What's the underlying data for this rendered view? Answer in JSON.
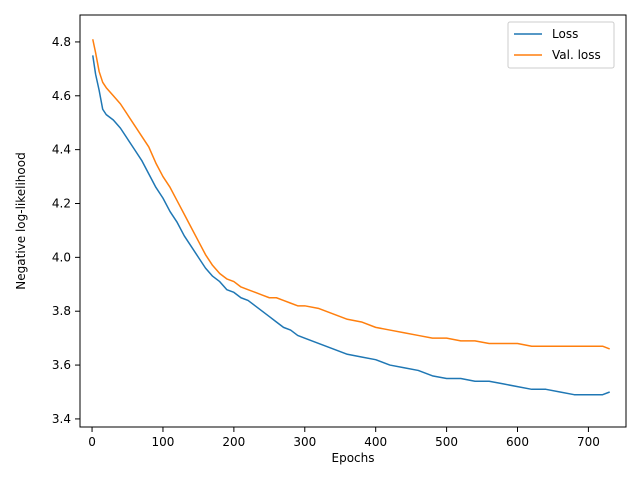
{
  "chart_data": {
    "type": "line",
    "title": "",
    "xlabel": "Epochs",
    "ylabel": "Negative log-likelihood",
    "xlim": [
      -17,
      753
    ],
    "ylim": [
      3.37,
      4.9
    ],
    "xticks": [
      0,
      100,
      200,
      300,
      400,
      500,
      600,
      700
    ],
    "xtick_labels": [
      "0",
      "100",
      "200",
      "300",
      "400",
      "500",
      "600",
      "700"
    ],
    "yticks": [
      3.4,
      3.6,
      3.8,
      4.0,
      4.2,
      4.4,
      4.6,
      4.8
    ],
    "ytick_labels": [
      "3.4",
      "3.6",
      "3.8",
      "4.0",
      "4.2",
      "4.4",
      "4.6",
      "4.8"
    ],
    "grid": false,
    "legend_position": "top-right",
    "series": [
      {
        "name": "Loss",
        "color": "#1f77b4",
        "x": [
          1,
          5,
          10,
          15,
          20,
          30,
          40,
          50,
          60,
          70,
          80,
          90,
          100,
          110,
          120,
          130,
          140,
          150,
          160,
          170,
          180,
          190,
          200,
          210,
          220,
          230,
          240,
          250,
          260,
          270,
          280,
          290,
          300,
          320,
          340,
          360,
          380,
          400,
          420,
          440,
          460,
          480,
          500,
          520,
          540,
          560,
          580,
          600,
          620,
          640,
          660,
          680,
          700,
          720,
          730
        ],
        "y": [
          4.75,
          4.68,
          4.62,
          4.55,
          4.53,
          4.51,
          4.48,
          4.44,
          4.4,
          4.36,
          4.31,
          4.26,
          4.22,
          4.17,
          4.13,
          4.08,
          4.04,
          4.0,
          3.96,
          3.93,
          3.91,
          3.88,
          3.87,
          3.85,
          3.84,
          3.82,
          3.8,
          3.78,
          3.76,
          3.74,
          3.73,
          3.71,
          3.7,
          3.68,
          3.66,
          3.64,
          3.63,
          3.62,
          3.6,
          3.59,
          3.58,
          3.56,
          3.55,
          3.55,
          3.54,
          3.54,
          3.53,
          3.52,
          3.51,
          3.51,
          3.5,
          3.49,
          3.49,
          3.49,
          3.5
        ]
      },
      {
        "name": "Val. loss",
        "color": "#ff7f0e",
        "x": [
          1,
          5,
          10,
          15,
          20,
          30,
          40,
          50,
          60,
          70,
          80,
          90,
          100,
          110,
          120,
          130,
          140,
          150,
          160,
          170,
          180,
          190,
          200,
          210,
          220,
          230,
          240,
          250,
          260,
          270,
          280,
          290,
          300,
          320,
          340,
          360,
          380,
          400,
          420,
          440,
          460,
          480,
          500,
          520,
          540,
          560,
          580,
          600,
          620,
          640,
          660,
          680,
          700,
          720,
          730
        ],
        "y": [
          4.81,
          4.76,
          4.69,
          4.65,
          4.63,
          4.6,
          4.57,
          4.53,
          4.49,
          4.45,
          4.41,
          4.35,
          4.3,
          4.26,
          4.21,
          4.16,
          4.11,
          4.06,
          4.01,
          3.97,
          3.94,
          3.92,
          3.91,
          3.89,
          3.88,
          3.87,
          3.86,
          3.85,
          3.85,
          3.84,
          3.83,
          3.82,
          3.82,
          3.81,
          3.79,
          3.77,
          3.76,
          3.74,
          3.73,
          3.72,
          3.71,
          3.7,
          3.7,
          3.69,
          3.69,
          3.68,
          3.68,
          3.68,
          3.67,
          3.67,
          3.67,
          3.67,
          3.67,
          3.67,
          3.66
        ]
      }
    ]
  }
}
